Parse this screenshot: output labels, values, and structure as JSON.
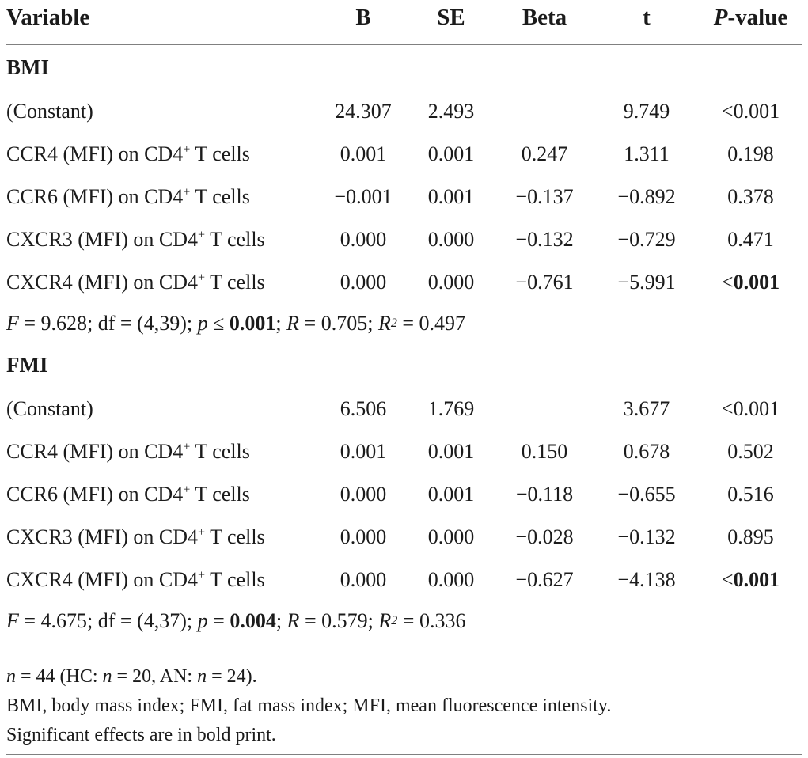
{
  "header": {
    "variable": "Variable",
    "b": "B",
    "se": "SE",
    "beta": "Beta",
    "t": "t",
    "p_italic": "P",
    "p_rest": "-value"
  },
  "table": {
    "sections": [
      {
        "title": "BMI",
        "rows": [
          {
            "label_pre": "(Constant)",
            "label_sup": "",
            "label_post": "",
            "b": "24.307",
            "se": "2.493",
            "beta": "",
            "t": "9.749",
            "p_prefix": "<",
            "p_value": "0.001",
            "p_bold": false
          },
          {
            "label_pre": "CCR4 (MFI) on CD4",
            "label_sup": "+",
            "label_post": " T cells",
            "b": "0.001",
            "se": "0.001",
            "beta": "0.247",
            "t": "1.311",
            "p_prefix": "",
            "p_value": "0.198",
            "p_bold": false
          },
          {
            "label_pre": "CCR6 (MFI) on CD4",
            "label_sup": "+",
            "label_post": " T cells",
            "b": "−0.001",
            "se": "0.001",
            "beta": "−0.137",
            "t": "−0.892",
            "p_prefix": "",
            "p_value": "0.378",
            "p_bold": false
          },
          {
            "label_pre": "CXCR3 (MFI) on CD4",
            "label_sup": "+",
            "label_post": " T cells",
            "b": "0.000",
            "se": "0.000",
            "beta": "−0.132",
            "t": "−0.729",
            "p_prefix": "",
            "p_value": "0.471",
            "p_bold": false
          },
          {
            "label_pre": "CXCR4 (MFI) on CD4",
            "label_sup": "+",
            "label_post": " T cells",
            "b": "0.000",
            "se": "0.000",
            "beta": "−0.761",
            "t": "−5.991",
            "p_prefix": "<",
            "p_value": "0.001",
            "p_bold": true
          }
        ],
        "stats_parts": [
          {
            "t": "F",
            "i": true
          },
          {
            "t": " = 9.628; df = (4,39); "
          },
          {
            "t": "p",
            "i": true
          },
          {
            "t": " ≤ "
          },
          {
            "t": "0.001",
            "b": true
          },
          {
            "t": "; "
          },
          {
            "t": "R",
            "i": true
          },
          {
            "t": " = 0.705; "
          },
          {
            "t": "R",
            "i": true
          },
          {
            "t": "2",
            "sup": true,
            "i": true
          },
          {
            "t": " = 0.497"
          }
        ]
      },
      {
        "title": "FMI",
        "rows": [
          {
            "label_pre": "(Constant)",
            "label_sup": "",
            "label_post": "",
            "b": "6.506",
            "se": "1.769",
            "beta": "",
            "t": "3.677",
            "p_prefix": "<",
            "p_value": "0.001",
            "p_bold": false
          },
          {
            "label_pre": "CCR4 (MFI) on CD4",
            "label_sup": "+",
            "label_post": " T cells",
            "b": "0.001",
            "se": "0.001",
            "beta": "0.150",
            "t": "0.678",
            "p_prefix": "",
            "p_value": "0.502",
            "p_bold": false
          },
          {
            "label_pre": "CCR6 (MFI) on CD4",
            "label_sup": "+",
            "label_post": " T cells",
            "b": "0.000",
            "se": "0.001",
            "beta": "−0.118",
            "t": "−0.655",
            "p_prefix": "",
            "p_value": "0.516",
            "p_bold": false
          },
          {
            "label_pre": "CXCR3 (MFI) on CD4",
            "label_sup": "+",
            "label_post": " T cells",
            "b": "0.000",
            "se": "0.000",
            "beta": "−0.028",
            "t": "−0.132",
            "p_prefix": "",
            "p_value": "0.895",
            "p_bold": false
          },
          {
            "label_pre": "CXCR4 (MFI) on CD4",
            "label_sup": "+",
            "label_post": " T cells",
            "b": "0.000",
            "se": "0.000",
            "beta": "−0.627",
            "t": "−4.138",
            "p_prefix": "<",
            "p_value": "0.001",
            "p_bold": true
          }
        ],
        "stats_parts": [
          {
            "t": "F",
            "i": true
          },
          {
            "t": " = 4.675; df = (4,37); "
          },
          {
            "t": "p",
            "i": true
          },
          {
            "t": " = "
          },
          {
            "t": "0.004",
            "b": true
          },
          {
            "t": "; "
          },
          {
            "t": "R",
            "i": true
          },
          {
            "t": " = 0.579; "
          },
          {
            "t": "R",
            "i": true
          },
          {
            "t": "2",
            "sup": true,
            "i": true
          },
          {
            "t": " = 0.336"
          }
        ]
      }
    ]
  },
  "footnotes": {
    "line1_parts": [
      {
        "t": "n",
        "i": true
      },
      {
        "t": " = 44 (HC: "
      },
      {
        "t": "n",
        "i": true
      },
      {
        "t": " = 20, AN: "
      },
      {
        "t": "n",
        "i": true
      },
      {
        "t": " = 24)."
      }
    ],
    "line2": "BMI, body mass index; FMI, fat mass index; MFI, mean fluorescence intensity.",
    "line3": "Significant effects are in bold print."
  }
}
